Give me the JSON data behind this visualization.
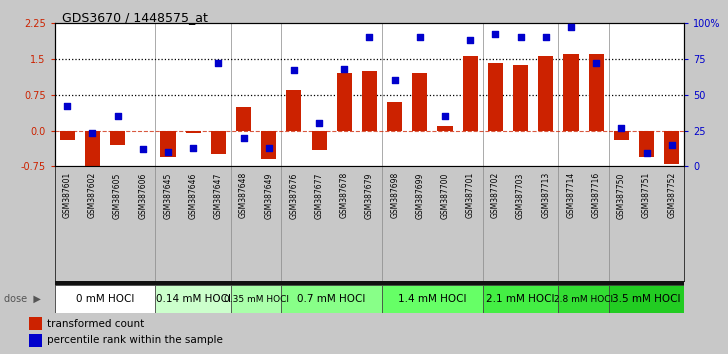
{
  "title": "GDS3670 / 1448575_at",
  "samples": [
    "GSM387601",
    "GSM387602",
    "GSM387605",
    "GSM387606",
    "GSM387645",
    "GSM387646",
    "GSM387647",
    "GSM387648",
    "GSM387649",
    "GSM387676",
    "GSM387677",
    "GSM387678",
    "GSM387679",
    "GSM387698",
    "GSM387699",
    "GSM387700",
    "GSM387701",
    "GSM387702",
    "GSM387703",
    "GSM387713",
    "GSM387714",
    "GSM387716",
    "GSM387750",
    "GSM387751",
    "GSM387752"
  ],
  "bar_values": [
    -0.2,
    -0.8,
    -0.3,
    -0.02,
    -0.55,
    -0.05,
    -0.5,
    0.5,
    -0.6,
    0.85,
    -0.4,
    1.2,
    1.25,
    0.6,
    1.2,
    0.1,
    1.55,
    1.42,
    1.38,
    1.55,
    1.6,
    1.6,
    -0.2,
    -0.55,
    -0.7
  ],
  "blue_pct": [
    42,
    23,
    35,
    12,
    10,
    13,
    72,
    20,
    13,
    67,
    30,
    68,
    90,
    60,
    90,
    35,
    88,
    92,
    90,
    90,
    97,
    72,
    27,
    9,
    15
  ],
  "dose_groups": [
    {
      "label": "0 mM HOCl",
      "start": 0,
      "end": 4,
      "color": "#ffffff"
    },
    {
      "label": "0.14 mM HOCl",
      "start": 4,
      "end": 7,
      "color": "#ccffcc"
    },
    {
      "label": "0.35 mM HOCl",
      "start": 7,
      "end": 9,
      "color": "#aaffaa"
    },
    {
      "label": "0.7 mM HOCl",
      "start": 9,
      "end": 13,
      "color": "#88ff88"
    },
    {
      "label": "1.4 mM HOCl",
      "start": 13,
      "end": 17,
      "color": "#66ff66"
    },
    {
      "label": "2.1 mM HOCl",
      "start": 17,
      "end": 20,
      "color": "#44ee44"
    },
    {
      "label": "2.8 mM HOCl",
      "start": 20,
      "end": 22,
      "color": "#33dd33"
    },
    {
      "label": "3.5 mM HOCl",
      "start": 22,
      "end": 25,
      "color": "#22cc22"
    }
  ],
  "ylim_left": [
    -0.75,
    2.25
  ],
  "yticks_left": [
    -0.75,
    0.0,
    0.75,
    1.5,
    2.25
  ],
  "yticks_right_vals": [
    0,
    25,
    50,
    75,
    100
  ],
  "hlines_dotted": [
    0.75,
    1.5
  ],
  "bar_color": "#cc2200",
  "blue_color": "#0000cc",
  "bg_plot": "#ffffff",
  "bg_outer": "#c8c8c8",
  "bg_xlabels": "#c8c8c8",
  "bg_dose_sep": "#111111",
  "legend_red_label": "transformed count",
  "legend_blue_label": "percentile rank within the sample"
}
